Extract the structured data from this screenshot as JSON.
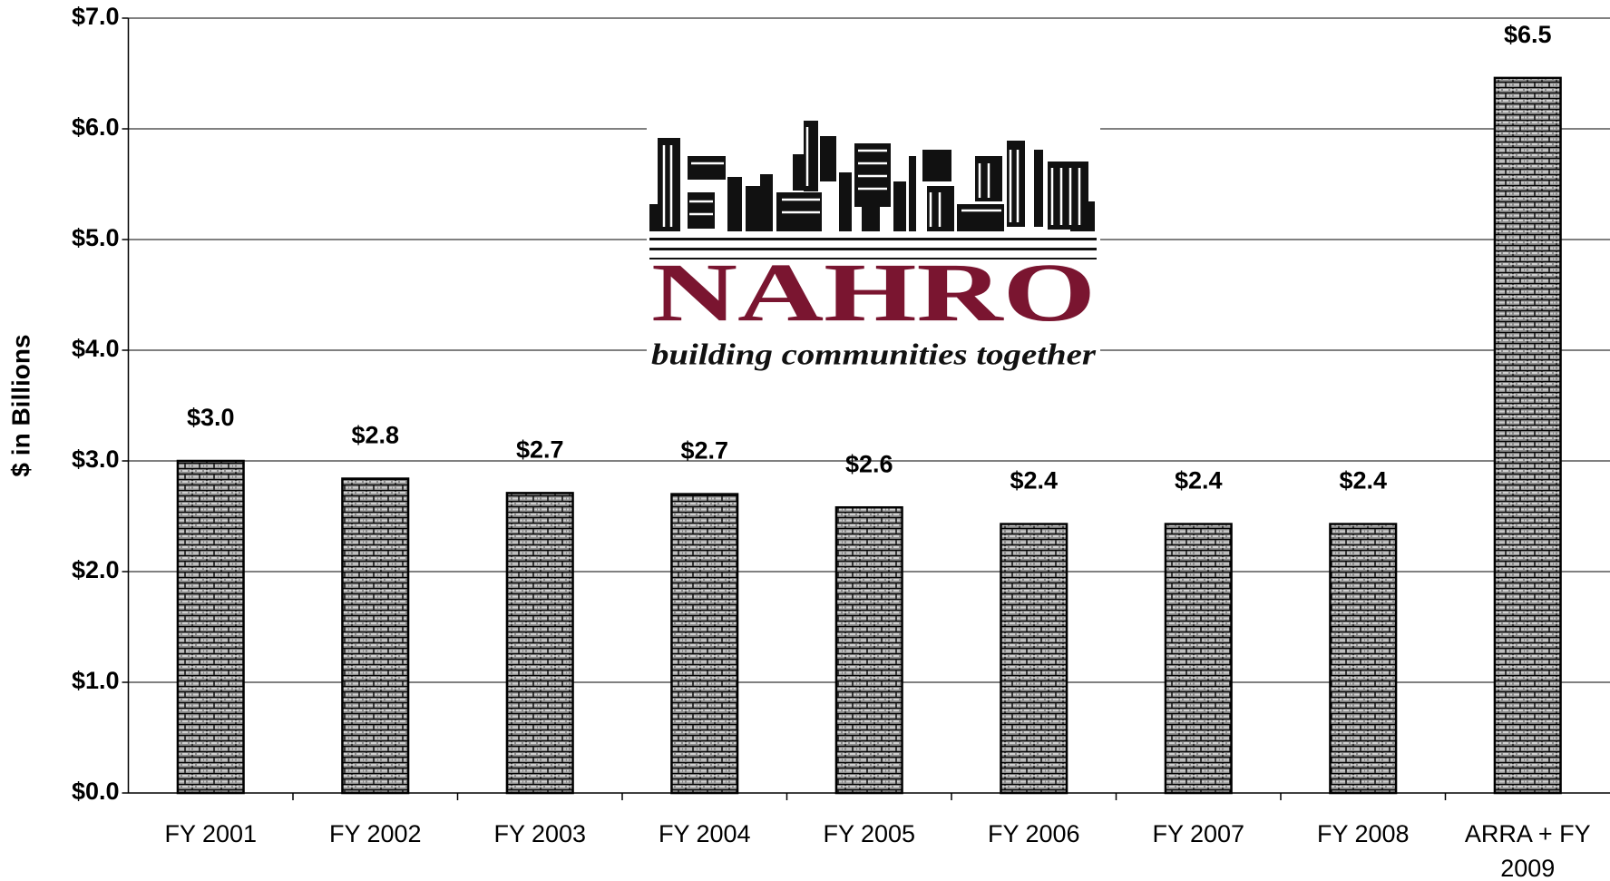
{
  "chart_data": {
    "type": "bar",
    "y_label": "$ in Billions",
    "categories": [
      "FY 2001",
      "FY 2002",
      "FY 2003",
      "FY 2004",
      "FY 2005",
      "FY 2006",
      "FY 2007",
      "FY 2008",
      "ARRA + FY 2009"
    ],
    "values": [
      3.0,
      2.84,
      2.71,
      2.7,
      2.58,
      2.43,
      2.43,
      2.43,
      6.46
    ],
    "value_labels": [
      "$3.0",
      "$2.8",
      "$2.7",
      "$2.7",
      "$2.6",
      "$2.4",
      "$2.4",
      "$2.4",
      "$6.5"
    ],
    "color": "#8c8c8c",
    "ylim": [
      0,
      7
    ],
    "yticks": [
      {
        "value": 0,
        "label": "$0.0"
      },
      {
        "value": 1,
        "label": "$1.0"
      },
      {
        "value": 2,
        "label": "$2.0"
      },
      {
        "value": 3,
        "label": "$3.0"
      },
      {
        "value": 4,
        "label": "$4.0"
      },
      {
        "value": 5,
        "label": "$5.0"
      },
      {
        "value": 6,
        "label": "$6.0"
      },
      {
        "value": 7,
        "label": "$7.0"
      }
    ],
    "grid": true,
    "logo": {
      "title": "NAHRO",
      "tagline": "building communities together"
    }
  }
}
